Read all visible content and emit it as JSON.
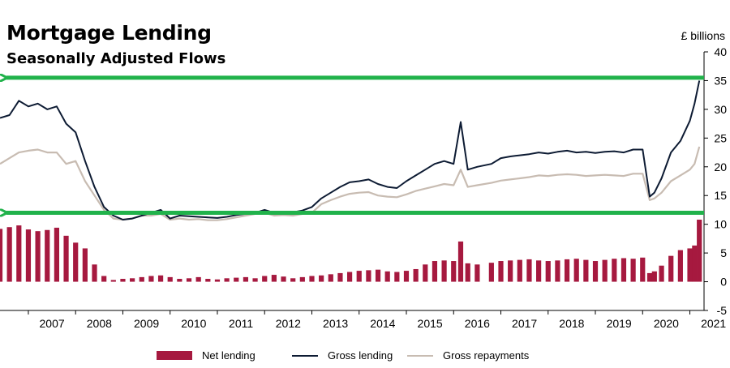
{
  "chart_data": {
    "type": "bar+line",
    "title": "Mortgage Lending",
    "subtitle": "Seasonally Adjusted Flows",
    "unit_label": "£ billions",
    "ylim": [
      -5,
      40
    ],
    "yticks": [
      -5,
      0,
      5,
      10,
      15,
      20,
      25,
      30,
      35,
      40
    ],
    "xlim": [
      2006.4,
      2021.3
    ],
    "xtick_labels": [
      "2007",
      "2008",
      "2009",
      "2010",
      "2011",
      "2012",
      "2013",
      "2014",
      "2015",
      "2016",
      "2017",
      "2018",
      "2019",
      "2020",
      "2021"
    ],
    "x": [
      2006.4,
      2006.6,
      2006.8,
      2007.0,
      2007.2,
      2007.4,
      2007.6,
      2007.8,
      2008.0,
      2008.2,
      2008.4,
      2008.6,
      2008.8,
      2009.0,
      2009.2,
      2009.4,
      2009.6,
      2009.8,
      2010.0,
      2010.2,
      2010.4,
      2010.6,
      2010.8,
      2011.0,
      2011.2,
      2011.4,
      2011.6,
      2011.8,
      2012.0,
      2012.2,
      2012.4,
      2012.6,
      2012.8,
      2013.0,
      2013.2,
      2013.4,
      2013.6,
      2013.8,
      2014.0,
      2014.2,
      2014.4,
      2014.6,
      2014.8,
      2015.0,
      2015.2,
      2015.4,
      2015.6,
      2015.8,
      2016.0,
      2016.15,
      2016.3,
      2016.5,
      2016.8,
      2017.0,
      2017.2,
      2017.4,
      2017.6,
      2017.8,
      2018.0,
      2018.2,
      2018.4,
      2018.6,
      2018.8,
      2019.0,
      2019.2,
      2019.4,
      2019.6,
      2019.8,
      2020.0,
      2020.15,
      2020.25,
      2020.4,
      2020.6,
      2020.8,
      2021.0,
      2021.1,
      2021.2
    ],
    "series": [
      {
        "name": "Net lending",
        "kind": "bar",
        "color": "#a6193f",
        "values": [
          9.2,
          9.5,
          9.8,
          9.1,
          8.8,
          9.0,
          9.4,
          8.0,
          6.8,
          5.8,
          3.0,
          1.0,
          0.3,
          0.5,
          0.6,
          0.8,
          1.0,
          1.1,
          0.8,
          0.5,
          0.6,
          0.8,
          0.5,
          0.4,
          0.6,
          0.7,
          0.8,
          0.6,
          1.0,
          1.2,
          0.9,
          0.6,
          0.8,
          1.0,
          1.1,
          1.3,
          1.5,
          1.7,
          1.9,
          2.0,
          2.1,
          1.8,
          1.7,
          1.9,
          2.2,
          3.0,
          3.6,
          3.7,
          3.6,
          7.0,
          3.2,
          3.0,
          3.3,
          3.6,
          3.7,
          3.8,
          3.9,
          3.7,
          3.6,
          3.7,
          3.9,
          4.0,
          3.8,
          3.6,
          3.8,
          4.0,
          4.1,
          4.0,
          4.2,
          1.5,
          1.8,
          2.8,
          4.5,
          5.5,
          5.8,
          6.3,
          10.8
        ]
      },
      {
        "name": "Gross lending",
        "kind": "line",
        "color": "#0d1b33",
        "values": [
          28.5,
          29.0,
          31.5,
          30.5,
          31.0,
          30.0,
          30.5,
          27.5,
          26.0,
          21.0,
          16.5,
          13.0,
          11.5,
          10.8,
          11.0,
          11.5,
          12.0,
          12.5,
          11.0,
          11.5,
          11.4,
          11.3,
          11.2,
          11.1,
          11.3,
          11.6,
          11.8,
          12.0,
          12.5,
          12.0,
          12.2,
          12.1,
          12.4,
          13.0,
          14.5,
          15.5,
          16.5,
          17.3,
          17.5,
          17.8,
          17.0,
          16.5,
          16.3,
          17.5,
          18.5,
          19.5,
          20.5,
          21.0,
          20.5,
          27.8,
          19.5,
          20.0,
          20.5,
          21.5,
          21.8,
          22.0,
          22.2,
          22.5,
          22.3,
          22.6,
          22.8,
          22.5,
          22.6,
          22.4,
          22.6,
          22.7,
          22.5,
          23.0,
          23.0,
          14.8,
          15.5,
          18.0,
          22.5,
          24.5,
          28.0,
          31.0,
          35.0
        ]
      },
      {
        "name": "Gross repayments",
        "kind": "line",
        "color": "#c8bcb2",
        "values": [
          20.5,
          21.5,
          22.5,
          22.8,
          23.0,
          22.5,
          22.5,
          20.5,
          21.0,
          17.5,
          15.0,
          12.5,
          11.0,
          10.8,
          11.0,
          11.5,
          11.5,
          11.8,
          10.8,
          11.0,
          10.8,
          10.9,
          10.7,
          10.7,
          10.9,
          11.2,
          11.5,
          11.8,
          12.0,
          11.5,
          11.6,
          11.5,
          11.8,
          12.0,
          13.5,
          14.2,
          14.8,
          15.3,
          15.5,
          15.6,
          15.0,
          14.8,
          14.7,
          15.2,
          15.8,
          16.2,
          16.6,
          17.0,
          16.8,
          19.5,
          16.5,
          16.8,
          17.2,
          17.6,
          17.8,
          18.0,
          18.2,
          18.5,
          18.4,
          18.6,
          18.7,
          18.6,
          18.4,
          18.5,
          18.6,
          18.5,
          18.4,
          18.8,
          18.8,
          14.2,
          14.5,
          15.5,
          17.5,
          18.5,
          19.5,
          20.5,
          23.5
        ]
      }
    ],
    "annotation_lines": [
      {
        "y": 35.5,
        "color": "#21b24b"
      },
      {
        "y": 12.0,
        "color": "#21b24b"
      }
    ],
    "legend_placement": "bottom"
  }
}
